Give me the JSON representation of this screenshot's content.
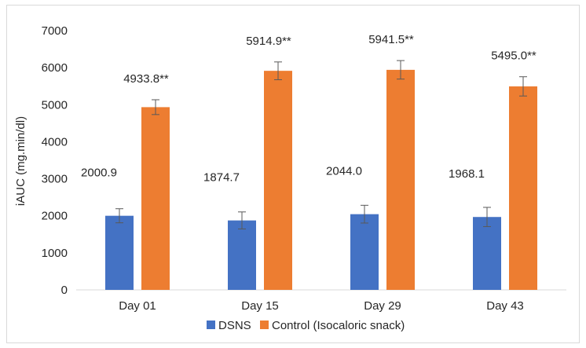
{
  "chart_data": {
    "type": "bar",
    "title": "",
    "xlabel": "",
    "ylabel": "iAUC (mg.min/dl)",
    "ylim": [
      0,
      7000
    ],
    "yticks": [
      0,
      1000,
      2000,
      3000,
      4000,
      5000,
      6000,
      7000
    ],
    "categories": [
      "Day 01",
      "Day 15",
      "Day 29",
      "Day 43"
    ],
    "grid": false,
    "legend_position": "bottom",
    "series": [
      {
        "name": "DSNS",
        "color": "#4472c4",
        "values": [
          2000.9,
          1874.7,
          2044.0,
          1968.1
        ],
        "error": [
          190,
          230,
          240,
          260
        ],
        "data_labels": [
          "2000.9",
          "1874.7",
          "2044.0",
          "1968.1"
        ]
      },
      {
        "name": "Control (Isocaloric snack)",
        "color": "#ed7d31",
        "values": [
          4933.8,
          5914.9,
          5941.5,
          5495.0
        ],
        "error": [
          200,
          240,
          250,
          260
        ],
        "data_labels": [
          "4933.8**",
          "5914.9**",
          "5941.5**",
          "5495.0**"
        ]
      }
    ]
  }
}
